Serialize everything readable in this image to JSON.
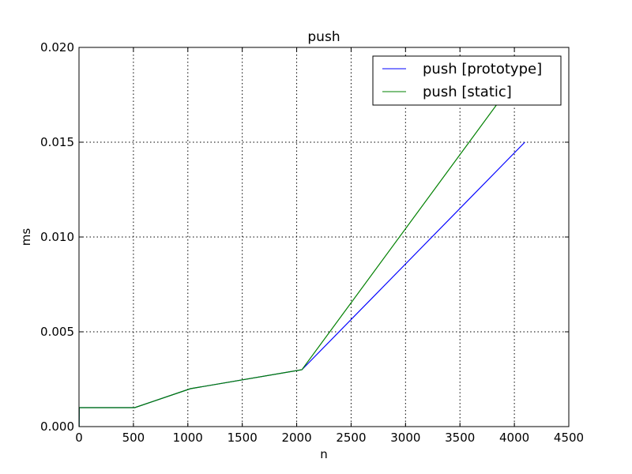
{
  "chart_data": {
    "type": "line",
    "title": "push",
    "xlabel": "n",
    "ylabel": "ms",
    "xlim": [
      0,
      4500
    ],
    "ylim": [
      0,
      0.02
    ],
    "xticks": [
      0,
      500,
      1000,
      1500,
      2000,
      2500,
      3000,
      3500,
      4000,
      4500
    ],
    "xtick_labels": [
      "0",
      "500",
      "1000",
      "1500",
      "2000",
      "2500",
      "3000",
      "3500",
      "4000",
      "4500"
    ],
    "yticks": [
      0,
      0.005,
      0.01,
      0.015,
      0.02
    ],
    "ytick_labels": [
      "0.000",
      "0.005",
      "0.010",
      "0.015",
      "0.020"
    ],
    "grid": true,
    "legend_position": "top-right",
    "series": [
      {
        "name": "push [prototype]",
        "color": "#0000ff",
        "x": [
          1,
          2,
          4,
          8,
          16,
          32,
          64,
          128,
          256,
          512,
          1024,
          2048,
          4096
        ],
        "y": [
          0,
          0.001,
          0.001,
          0.001,
          0.001,
          0.001,
          0.001,
          0.001,
          0.001,
          0.001,
          0.002,
          0.003,
          0.015
        ]
      },
      {
        "name": "push [static]",
        "color": "#008000",
        "x": [
          1,
          2,
          4,
          8,
          16,
          32,
          64,
          128,
          256,
          512,
          1024,
          2048,
          4096
        ],
        "y": [
          0,
          0.001,
          0.001,
          0.001,
          0.001,
          0.001,
          0.001,
          0.001,
          0.001,
          0.001,
          0.002,
          0.003,
          0.019
        ]
      }
    ]
  }
}
